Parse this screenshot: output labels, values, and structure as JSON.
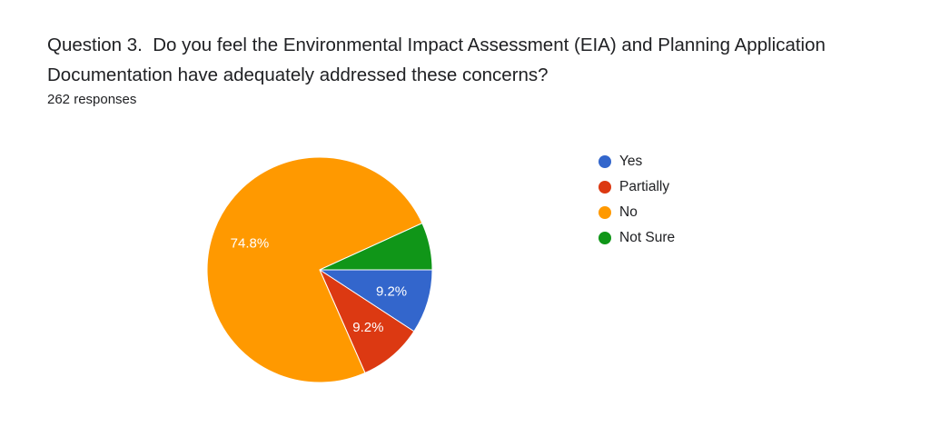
{
  "question": {
    "title": "Question 3.  Do you feel the Environmental Impact Assessment (EIA) and Planning Application Documentation have adequately addressed these concerns?",
    "responses": "262 responses"
  },
  "chart_data": {
    "type": "pie",
    "title": "",
    "legend_position": "right",
    "slices": [
      {
        "label": "Yes",
        "value": 9.2,
        "display": "9.2%",
        "color": "#3366cc"
      },
      {
        "label": "Partially",
        "value": 9.2,
        "display": "9.2%",
        "color": "#dc3912"
      },
      {
        "label": "No",
        "value": 74.8,
        "display": "74.8%",
        "color": "#ff9900"
      },
      {
        "label": "Not Sure",
        "value": 6.8,
        "display": "",
        "color": "#109618"
      }
    ]
  }
}
